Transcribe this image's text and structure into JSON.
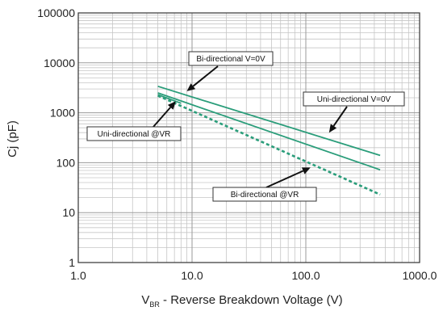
{
  "chart_data": {
    "type": "line",
    "x_scale": "log",
    "y_scale": "log",
    "xlim": [
      1.0,
      1000.0
    ],
    "ylim": [
      1,
      100000
    ],
    "grid": true,
    "ylabel": "Cj (pF)",
    "xlabel_sym": "V",
    "xlabel_sub": "BR",
    "xlabel_rest": " - Reverse Breakdown Voltage (V)",
    "x_ticks": [
      1.0,
      10.0,
      100.0,
      1000.0
    ],
    "x_tick_labels": [
      "1.0",
      "10.0",
      "100.0",
      "1000.0"
    ],
    "y_ticks": [
      1,
      10,
      100,
      1000,
      10000,
      100000
    ],
    "y_tick_labels": [
      "1",
      "10",
      "100",
      "1000",
      "10000",
      "100000"
    ],
    "series_color": "#2a9d7a",
    "series": [
      {
        "name": "Bi-directional V=0V",
        "style": "solid",
        "x": [
          5,
          450
        ],
        "y": [
          3400,
          140
        ]
      },
      {
        "name": "Uni-directional V=0V",
        "style": "solid",
        "x": [
          5,
          450
        ],
        "y": [
          2500,
          72
        ]
      },
      {
        "name": "Uni-directional @ VR",
        "style": "solid",
        "x": [
          5,
          8
        ],
        "y": [
          2300,
          1550
        ]
      },
      {
        "name": "Bi-directional @ VR",
        "style": "dashed",
        "x": [
          5,
          450
        ],
        "y": [
          2200,
          23
        ]
      }
    ],
    "annotations": [
      {
        "text": "Bi-directional V=0V",
        "arrow_to": [
          9,
          2700
        ]
      },
      {
        "text": "Uni-directional V=0V",
        "arrow_to": [
          160,
          400
        ]
      },
      {
        "text": "Uni-directional @VR",
        "arrow_to": [
          7.2,
          1700
        ]
      },
      {
        "text": "Bi-directional @VR",
        "arrow_to": [
          110,
          80
        ]
      }
    ]
  }
}
